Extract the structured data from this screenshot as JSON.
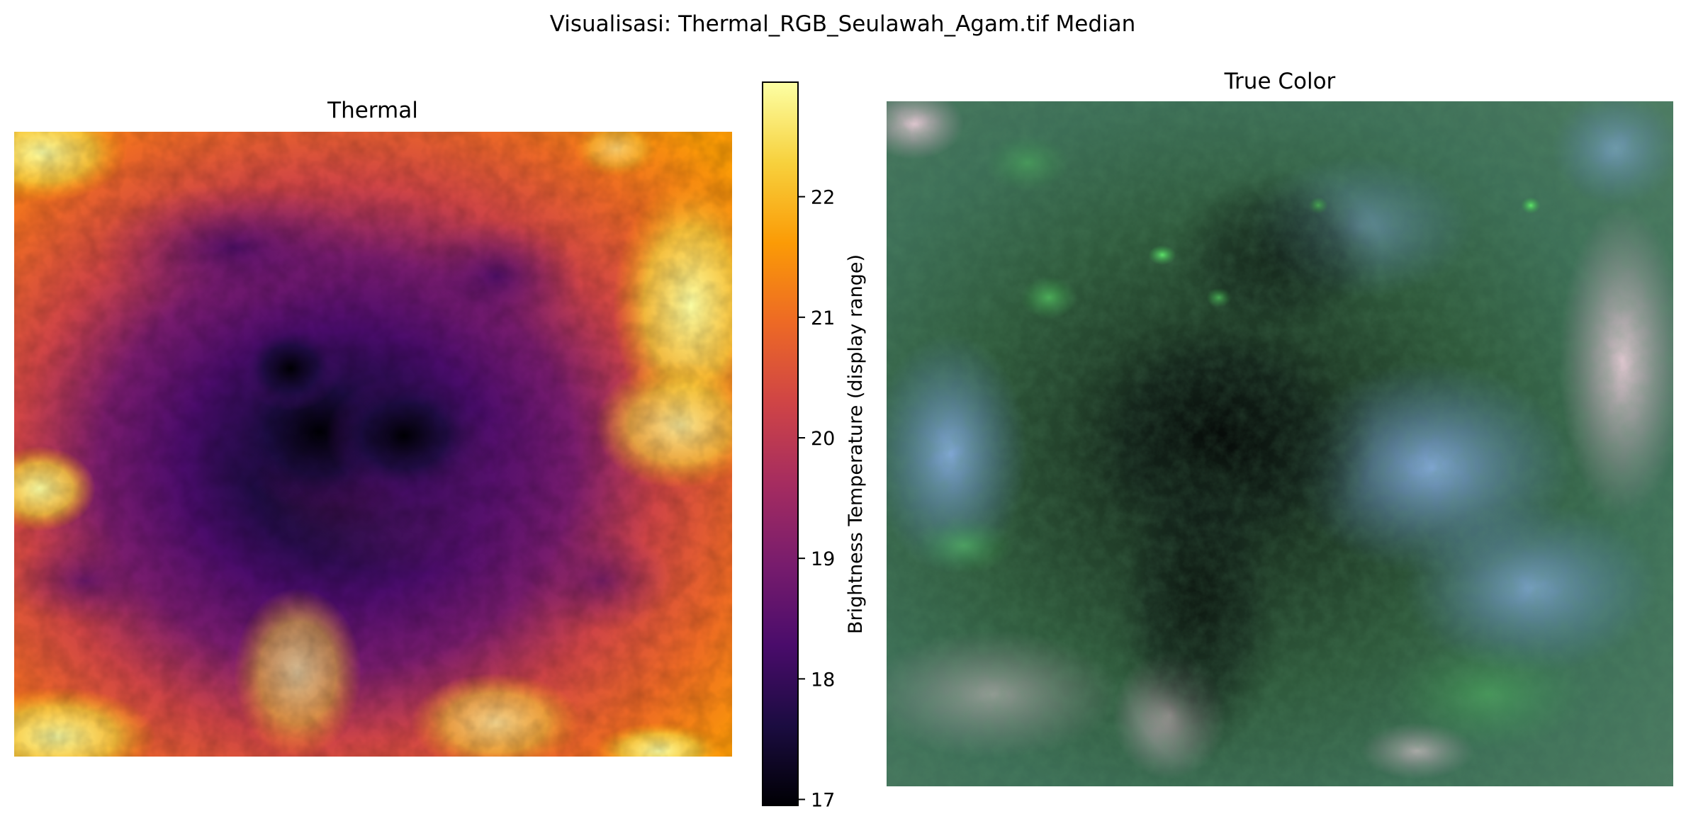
{
  "figure": {
    "suptitle": "Visualisasi: Thermal_RGB_Seulawah_Agam.tif Median"
  },
  "thermal_panel": {
    "title": "Thermal"
  },
  "truecolor_panel": {
    "title": "True Color"
  },
  "chart_data": [
    {
      "type": "heatmap",
      "title": "Thermal",
      "colormap": "inferno",
      "axes_visible": false,
      "colorbar": {
        "label": "Brightness Temperature (display range)",
        "range": [
          16.95,
          22.95
        ],
        "ticks": [
          17,
          18,
          19,
          20,
          21,
          22
        ],
        "tick_labels": [
          "17",
          "18",
          "19",
          "20",
          "21",
          "22"
        ],
        "stops": [
          "#000004",
          "#1b0c41",
          "#4a0c6b",
          "#781c6d",
          "#a52c60",
          "#cf4446",
          "#ed6925",
          "#fb9b06",
          "#f7d13d",
          "#fcffa4"
        ]
      }
    },
    {
      "type": "heatmap",
      "title": "True Color",
      "colormap": "rgb",
      "axes_visible": false
    }
  ]
}
